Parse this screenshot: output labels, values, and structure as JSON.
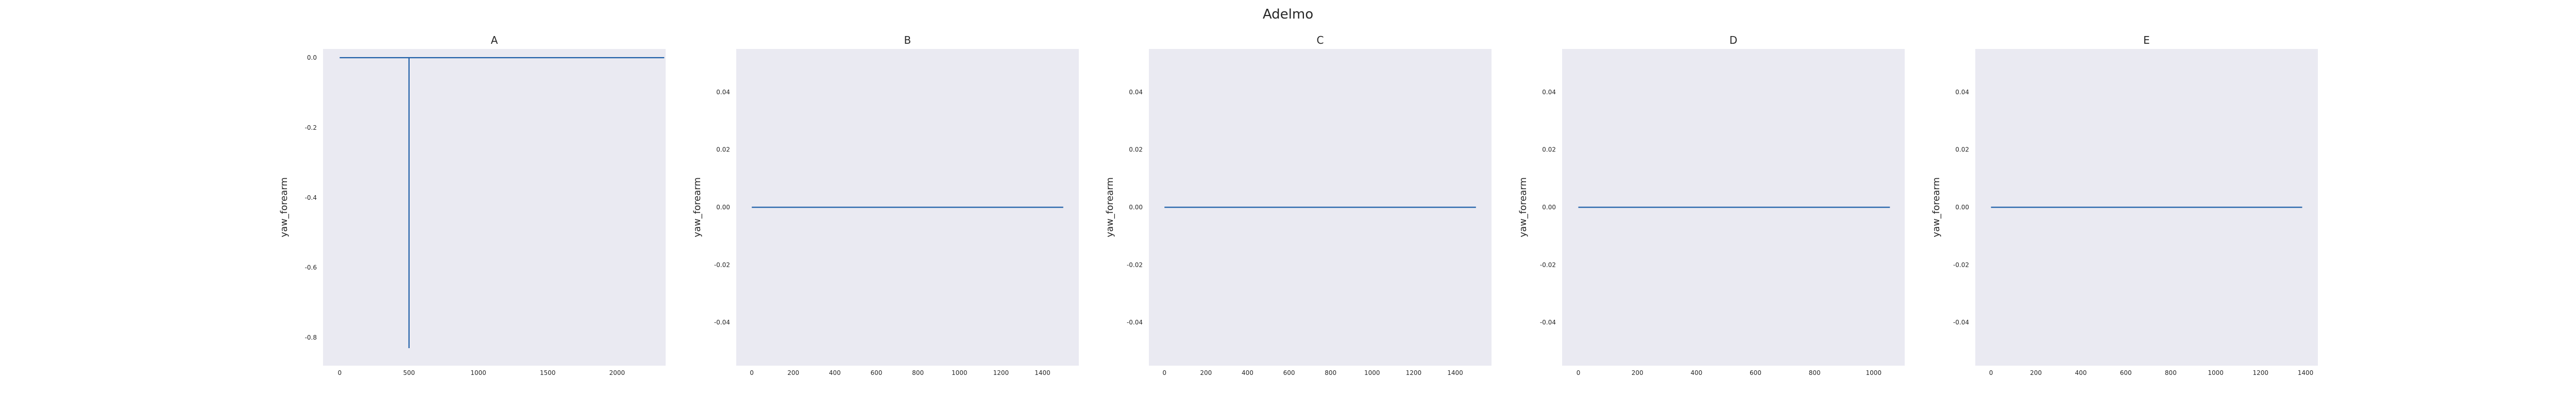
{
  "figure": {
    "title": "Adelmo"
  },
  "colors": {
    "background": "#eaeaf2",
    "line": "#1f5fa8",
    "text": "#262626"
  },
  "chart_data": [
    {
      "type": "line",
      "title": "A",
      "ylabel": "yaw_forearm",
      "xlabel": "",
      "grid": false,
      "xlim": [
        -120,
        2350
      ],
      "ylim": [
        -0.88,
        0.025
      ],
      "xticks": [
        0,
        500,
        1000,
        1500,
        2000
      ],
      "yticks": [
        0.0,
        -0.2,
        -0.4,
        -0.6,
        -0.8
      ],
      "ytick_labels": [
        "0.0",
        "-0.2",
        "-0.4",
        "-0.6",
        "-0.8"
      ],
      "series": [
        {
          "x": [
            0,
            500,
            500,
            500,
            2340
          ],
          "y": [
            0,
            0,
            -0.83,
            0,
            0
          ]
        }
      ]
    },
    {
      "type": "line",
      "title": "B",
      "ylabel": "yaw_forearm",
      "xlabel": "",
      "grid": false,
      "xlim": [
        -75,
        1575
      ],
      "ylim": [
        -0.055,
        0.055
      ],
      "xticks": [
        0,
        200,
        400,
        600,
        800,
        1000,
        1200,
        1400
      ],
      "yticks": [
        0.04,
        0.02,
        0.0,
        -0.02,
        -0.04
      ],
      "ytick_labels": [
        "0.04",
        "0.02",
        "0.00",
        "-0.02",
        "-0.04"
      ],
      "series": [
        {
          "x": [
            0,
            1500
          ],
          "y": [
            0,
            0
          ]
        }
      ]
    },
    {
      "type": "line",
      "title": "C",
      "ylabel": "yaw_forearm",
      "xlabel": "",
      "grid": false,
      "xlim": [
        -75,
        1575
      ],
      "ylim": [
        -0.055,
        0.055
      ],
      "xticks": [
        0,
        200,
        400,
        600,
        800,
        1000,
        1200,
        1400
      ],
      "yticks": [
        0.04,
        0.02,
        0.0,
        -0.02,
        -0.04
      ],
      "ytick_labels": [
        "0.04",
        "0.02",
        "0.00",
        "-0.02",
        "-0.04"
      ],
      "series": [
        {
          "x": [
            0,
            1500
          ],
          "y": [
            0,
            0
          ]
        }
      ]
    },
    {
      "type": "line",
      "title": "D",
      "ylabel": "yaw_forearm",
      "xlabel": "",
      "grid": false,
      "xlim": [
        -55,
        1105
      ],
      "ylim": [
        -0.055,
        0.055
      ],
      "xticks": [
        0,
        200,
        400,
        600,
        800,
        1000
      ],
      "yticks": [
        0.04,
        0.02,
        0.0,
        -0.02,
        -0.04
      ],
      "ytick_labels": [
        "0.04",
        "0.02",
        "0.00",
        "-0.02",
        "-0.04"
      ],
      "series": [
        {
          "x": [
            0,
            1055
          ],
          "y": [
            0,
            0
          ]
        }
      ]
    },
    {
      "type": "line",
      "title": "E",
      "ylabel": "yaw_forearm",
      "xlabel": "",
      "grid": false,
      "xlim": [
        -70,
        1455
      ],
      "ylim": [
        -0.055,
        0.055
      ],
      "xticks": [
        0,
        200,
        400,
        600,
        800,
        1000,
        1200,
        1400
      ],
      "yticks": [
        0.04,
        0.02,
        0.0,
        -0.02,
        -0.04
      ],
      "ytick_labels": [
        "0.04",
        "0.02",
        "0.00",
        "-0.02",
        "-0.04"
      ],
      "series": [
        {
          "x": [
            0,
            1385
          ],
          "y": [
            0,
            0
          ]
        }
      ]
    }
  ]
}
